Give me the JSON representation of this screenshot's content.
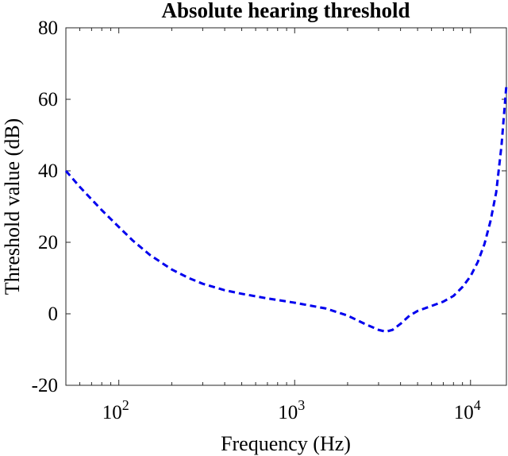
{
  "chart_data": {
    "type": "line",
    "title": "Absolute hearing threshold",
    "xlabel": "Frequency (Hz)",
    "ylabel": "Threshold value (dB)",
    "xscale": "log",
    "xlim": [
      50,
      16000
    ],
    "ylim": [
      -20,
      80
    ],
    "x_ticks": [
      {
        "value": 100,
        "base": "10",
        "exp": "2"
      },
      {
        "value": 1000,
        "base": "10",
        "exp": "3"
      },
      {
        "value": 10000,
        "base": "10",
        "exp": "4"
      }
    ],
    "y_ticks": [
      {
        "value": -20,
        "label": "-20"
      },
      {
        "value": 0,
        "label": "0"
      },
      {
        "value": 20,
        "label": "20"
      },
      {
        "value": 40,
        "label": "40"
      },
      {
        "value": 60,
        "label": "60"
      },
      {
        "value": 80,
        "label": "80"
      }
    ],
    "grid": false,
    "series": [
      {
        "color": "#0000ee",
        "line_style": "dashed",
        "x": [
          50,
          60,
          70,
          80,
          100,
          120,
          150,
          200,
          250,
          300,
          400,
          500,
          700,
          1000,
          1500,
          2000,
          2500,
          3000,
          3300,
          3600,
          4000,
          4500,
          5000,
          6000,
          7000,
          8000,
          9000,
          10000,
          11000,
          12000,
          13000,
          14000,
          15000,
          16000
        ],
        "y": [
          40,
          35.5,
          32,
          29,
          24.3,
          20.5,
          16.5,
          12.4,
          10,
          8.4,
          6.6,
          5.6,
          4.3,
          3.1,
          1.5,
          -0.5,
          -2.8,
          -4.5,
          -5,
          -4.5,
          -2.8,
          -0.5,
          0.8,
          2.2,
          3.4,
          5,
          7.5,
          10.5,
          14.5,
          19.5,
          26,
          34,
          47,
          64
        ]
      }
    ]
  }
}
